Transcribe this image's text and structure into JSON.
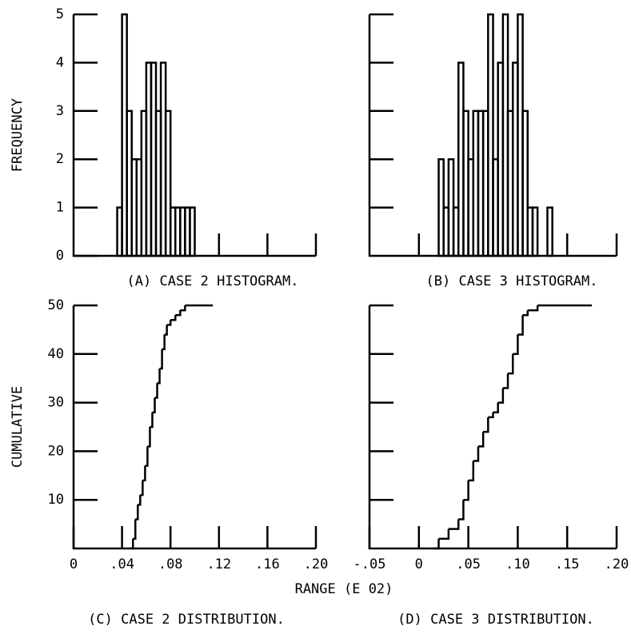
{
  "xlabel": "RANGE (E 02)",
  "chart_data": [
    {
      "type": "histogram",
      "title": "(A) CASE 2 HISTOGRAM.",
      "ylabel": "FREQUENCY",
      "bins": [
        0.036,
        0.04,
        0.044,
        0.048,
        0.052,
        0.056,
        0.06,
        0.064,
        0.068,
        0.072,
        0.076,
        0.08,
        0.084,
        0.088,
        0.092,
        0.096,
        0.1
      ],
      "values": [
        1,
        5,
        3,
        2,
        2,
        3,
        4,
        4,
        3,
        4,
        3,
        1,
        1,
        1,
        1,
        1
      ],
      "xlim": [
        0,
        0.2
      ],
      "xticks": [
        0.04,
        0.08,
        0.12,
        0.16,
        0.2
      ],
      "ylim": [
        0,
        5
      ],
      "yticks": [
        0,
        1,
        2,
        3,
        4,
        5
      ],
      "show_xticklabels": false,
      "show_yticklabels": true,
      "color": "#000000"
    },
    {
      "type": "histogram",
      "title": "(B) CASE 3 HISTOGRAM.",
      "bins": [
        0.02,
        0.025,
        0.03,
        0.035,
        0.04,
        0.045,
        0.05,
        0.055,
        0.06,
        0.065,
        0.07,
        0.075,
        0.08,
        0.085,
        0.09,
        0.095,
        0.1,
        0.105,
        0.11,
        0.115,
        0.12,
        0.125,
        0.13,
        0.135
      ],
      "values": [
        2,
        1,
        2,
        1,
        4,
        3,
        2,
        3,
        3,
        3,
        5,
        2,
        4,
        5,
        3,
        4,
        5,
        3,
        1,
        1,
        0,
        0,
        1
      ],
      "xlim": [
        -0.05,
        0.2
      ],
      "xticks": [
        0,
        0.05,
        0.1,
        0.15,
        0.2
      ],
      "ylim": [
        0,
        5
      ],
      "yticks": [
        1,
        2,
        3,
        4,
        5
      ],
      "show_xticklabels": false,
      "show_yticklabels": false,
      "color": "#000000"
    },
    {
      "type": "step",
      "title": "(C) CASE 2 DISTRIBUTION.",
      "ylabel": "CUMULATIVE",
      "x": [
        0.047,
        0.049,
        0.051,
        0.053,
        0.055,
        0.057,
        0.059,
        0.061,
        0.063,
        0.065,
        0.067,
        0.069,
        0.071,
        0.073,
        0.075,
        0.077,
        0.08,
        0.084,
        0.088,
        0.092,
        0.096,
        0.115
      ],
      "values": [
        0,
        2,
        6,
        9,
        11,
        14,
        17,
        21,
        25,
        28,
        31,
        34,
        37,
        41,
        44,
        46,
        47,
        48,
        49,
        50,
        50,
        50
      ],
      "xlim": [
        0,
        0.2
      ],
      "xticks": [
        0,
        {
          "value": 0.04,
          "label": ".04"
        },
        {
          "value": 0.08,
          "label": ".08"
        },
        {
          "value": 0.12,
          "label": ".12"
        },
        {
          "value": 0.16,
          "label": ".16"
        },
        {
          "value": 0.2,
          "label": ".20"
        }
      ],
      "ylim": [
        0,
        50
      ],
      "yticks": [
        10,
        20,
        30,
        40,
        50
      ],
      "show_xticklabels": true,
      "show_yticklabels": true,
      "color": "#000000"
    },
    {
      "type": "step",
      "title": "(D) CASE 3 DISTRIBUTION.",
      "x": [
        0.015,
        0.02,
        0.03,
        0.04,
        0.045,
        0.05,
        0.055,
        0.06,
        0.065,
        0.07,
        0.075,
        0.08,
        0.085,
        0.09,
        0.095,
        0.1,
        0.105,
        0.11,
        0.12,
        0.13,
        0.175
      ],
      "values": [
        0,
        2,
        4,
        6,
        10,
        14,
        18,
        21,
        24,
        27,
        28,
        30,
        33,
        36,
        40,
        44,
        48,
        49,
        50,
        50,
        50
      ],
      "xlim": [
        -0.05,
        0.2
      ],
      "xticks": [
        {
          "value": -0.05,
          "label": "-.05"
        },
        0,
        {
          "value": 0.05,
          "label": ".05"
        },
        {
          "value": 0.1,
          "label": ".10"
        },
        {
          "value": 0.15,
          "label": ".15"
        },
        {
          "value": 0.2,
          "label": ".20"
        }
      ],
      "ylim": [
        0,
        50
      ],
      "yticks": [
        10,
        20,
        30,
        40,
        50
      ],
      "show_xticklabels": true,
      "show_yticklabels": false,
      "color": "#000000"
    }
  ]
}
